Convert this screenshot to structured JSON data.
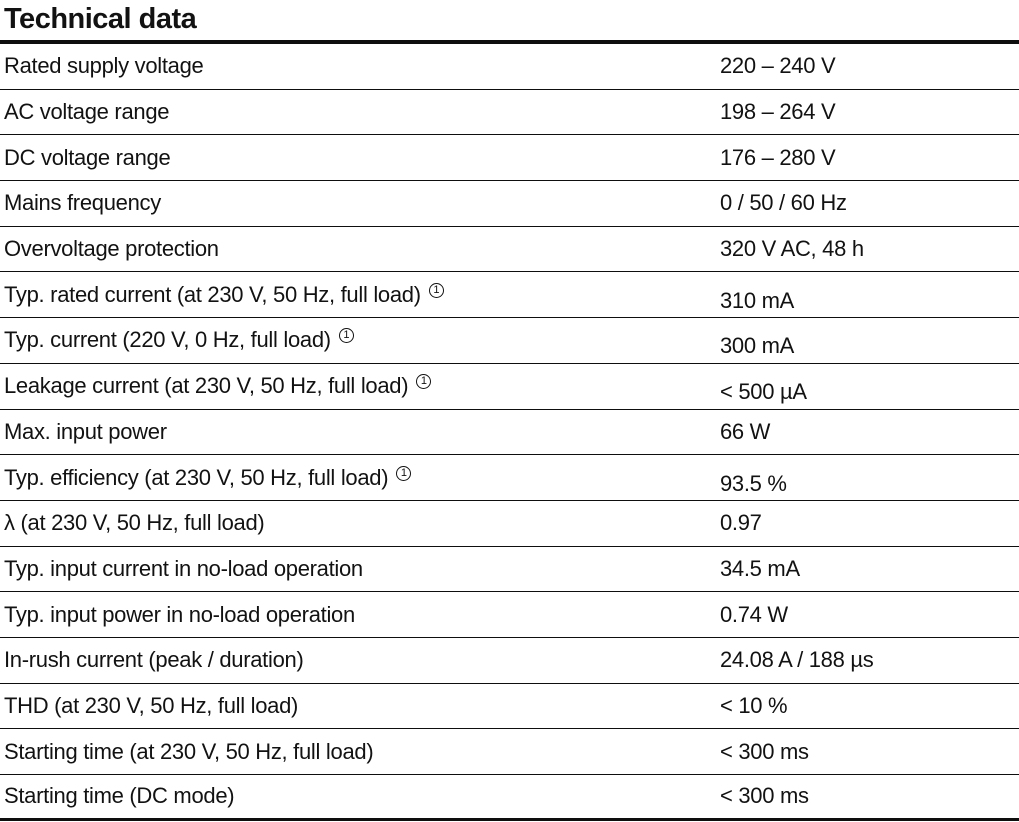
{
  "title": "Technical data",
  "footnote_symbol": "1",
  "table": {
    "rows": [
      {
        "label": "Rated supply voltage",
        "value": "220 – 240 V"
      },
      {
        "label": "AC voltage range",
        "value": "198 – 264 V"
      },
      {
        "label": "DC voltage range",
        "value": "176 – 280 V"
      },
      {
        "label": "Mains frequency",
        "value": "0 / 50 / 60 Hz"
      },
      {
        "label": "Overvoltage protection",
        "value": "320 V AC, 48 h"
      },
      {
        "label": "Typ. rated current (at 230 V, 50 Hz, full load)",
        "sup": "1",
        "value": "310 mA"
      },
      {
        "label": "Typ. current (220 V, 0 Hz, full load)",
        "sup": "1",
        "value": "300 mA"
      },
      {
        "label": "Leakage current (at 230 V, 50 Hz, full load)",
        "sup": "1",
        "value": "< 500 µA"
      },
      {
        "label": "Max. input power",
        "value": "66 W"
      },
      {
        "label": "Typ. efficiency (at 230 V, 50 Hz, full load)",
        "sup": "1",
        "value": "93.5 %"
      },
      {
        "label": "λ (at 230 V, 50 Hz, full load)",
        "value": "0.97"
      },
      {
        "label": "Typ. input current in no-load operation",
        "value": "34.5 mA"
      },
      {
        "label": "Typ. input power in no-load operation",
        "value": "0.74 W"
      },
      {
        "label": "In-rush current (peak / duration)",
        "value": "24.08 A / 188 µs"
      },
      {
        "label": "THD (at 230 V, 50 Hz, full load)",
        "value": "< 10 %"
      },
      {
        "label": "Starting time (at 230 V, 50 Hz, full load)",
        "value": "< 300 ms"
      },
      {
        "label": "Starting time (DC mode)",
        "value": "< 300 ms"
      }
    ]
  }
}
